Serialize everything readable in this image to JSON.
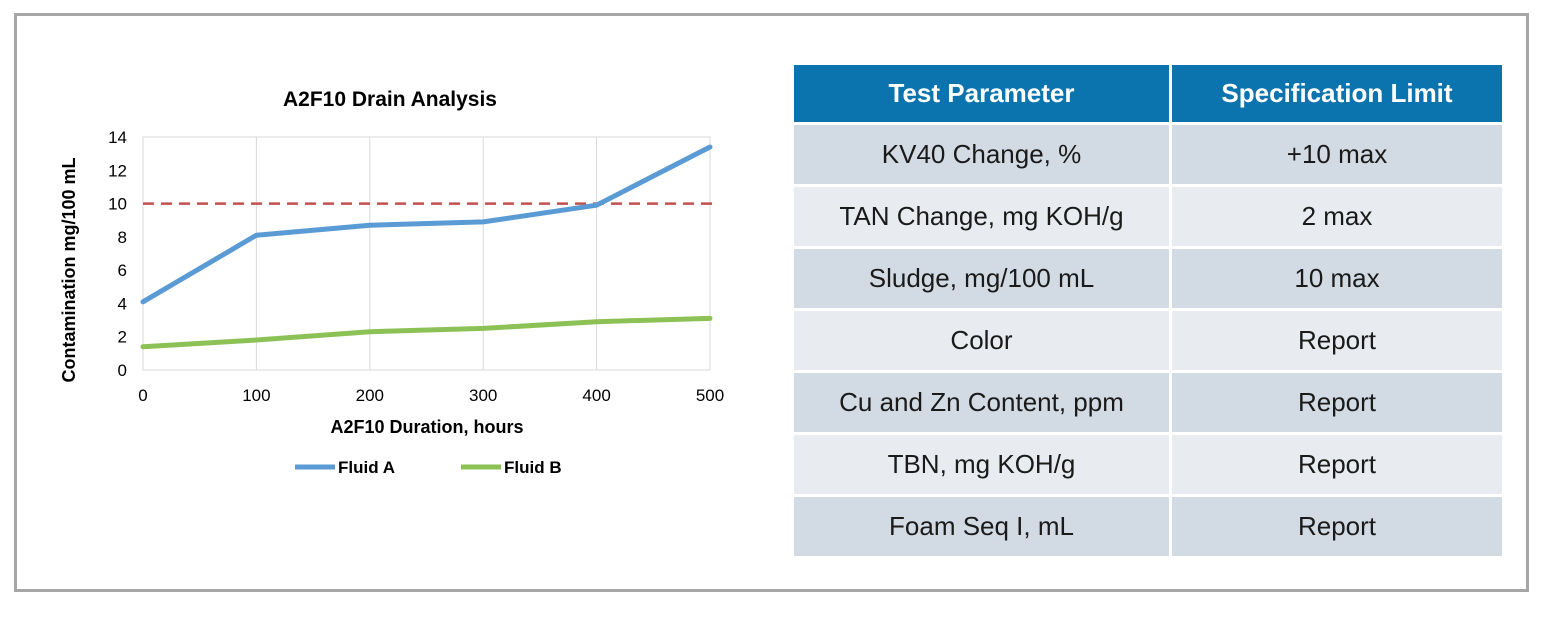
{
  "chart_data": {
    "type": "line",
    "title": "A2F10 Drain Analysis",
    "xlabel": "A2F10 Duration, hours",
    "ylabel": "Contamination mg/100 mL",
    "x": [
      0,
      100,
      200,
      300,
      400,
      500
    ],
    "x_ticks": [
      "0",
      "100",
      "200",
      "300",
      "400",
      "500"
    ],
    "y_ticks": [
      "0",
      "2",
      "4",
      "6",
      "8",
      "10",
      "12",
      "14"
    ],
    "xlim": [
      0,
      500
    ],
    "ylim": [
      0,
      14
    ],
    "grid": "vertical",
    "legend_position": "bottom",
    "series": [
      {
        "name": "Fluid A",
        "color": "#5b9bd5",
        "values": [
          4.1,
          8.1,
          8.7,
          8.9,
          9.9,
          13.4
        ]
      },
      {
        "name": "Fluid B",
        "color": "#8cc156",
        "values": [
          1.4,
          1.8,
          2.3,
          2.5,
          2.9,
          3.1
        ]
      }
    ],
    "reference_line": {
      "y": 10,
      "color": "#c0504d",
      "style": "dashed"
    }
  },
  "table": {
    "headers": [
      "Test Parameter",
      "Specification Limit"
    ],
    "rows": [
      [
        "KV40 Change, %",
        "+10 max"
      ],
      [
        "TAN Change, mg KOH/g",
        "2 max"
      ],
      [
        "Sludge, mg/100 mL",
        "10 max"
      ],
      [
        "Color",
        "Report"
      ],
      [
        "Cu and Zn Content, ppm",
        "Report"
      ],
      [
        "TBN, mg KOH/g",
        "Report"
      ],
      [
        "Foam  Seq I, mL",
        "Report"
      ]
    ]
  }
}
